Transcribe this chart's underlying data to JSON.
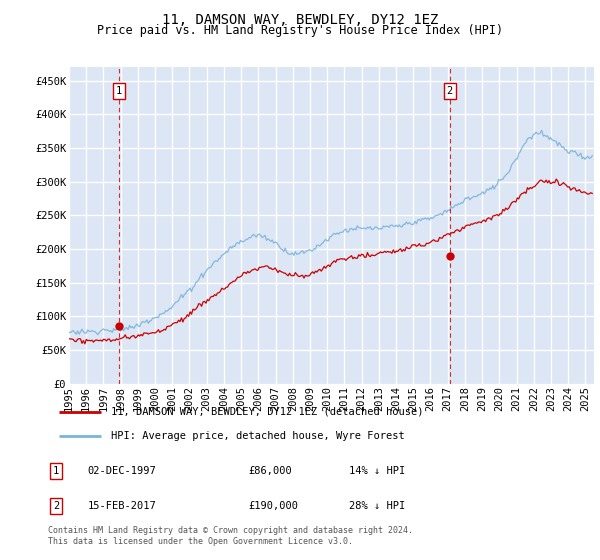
{
  "title": "11, DAMSON WAY, BEWDLEY, DY12 1EZ",
  "subtitle": "Price paid vs. HM Land Registry's House Price Index (HPI)",
  "ylabel_ticks": [
    "£0",
    "£50K",
    "£100K",
    "£150K",
    "£200K",
    "£250K",
    "£300K",
    "£350K",
    "£400K",
    "£450K"
  ],
  "ylim": [
    0,
    470000
  ],
  "xlim_start": 1995.0,
  "xlim_end": 2025.5,
  "plot_bg_color": "#dce6f5",
  "grid_color": "#ffffff",
  "hpi_color": "#7ab3d9",
  "price_color": "#cc0000",
  "marker_color": "#cc0000",
  "vline_color": "#cc0000",
  "sale1_x": 1997.92,
  "sale1_y": 86000,
  "sale2_x": 2017.12,
  "sale2_y": 190000,
  "legend_label1": "11, DAMSON WAY, BEWDLEY, DY12 1EZ (detached house)",
  "legend_label2": "HPI: Average price, detached house, Wyre Forest",
  "table_row1": [
    "1",
    "02-DEC-1997",
    "£86,000",
    "14% ↓ HPI"
  ],
  "table_row2": [
    "2",
    "15-FEB-2017",
    "£190,000",
    "28% ↓ HPI"
  ],
  "footer": "Contains HM Land Registry data © Crown copyright and database right 2024.\nThis data is licensed under the Open Government Licence v3.0.",
  "title_fontsize": 10,
  "subtitle_fontsize": 8.5,
  "tick_fontsize": 7.5
}
